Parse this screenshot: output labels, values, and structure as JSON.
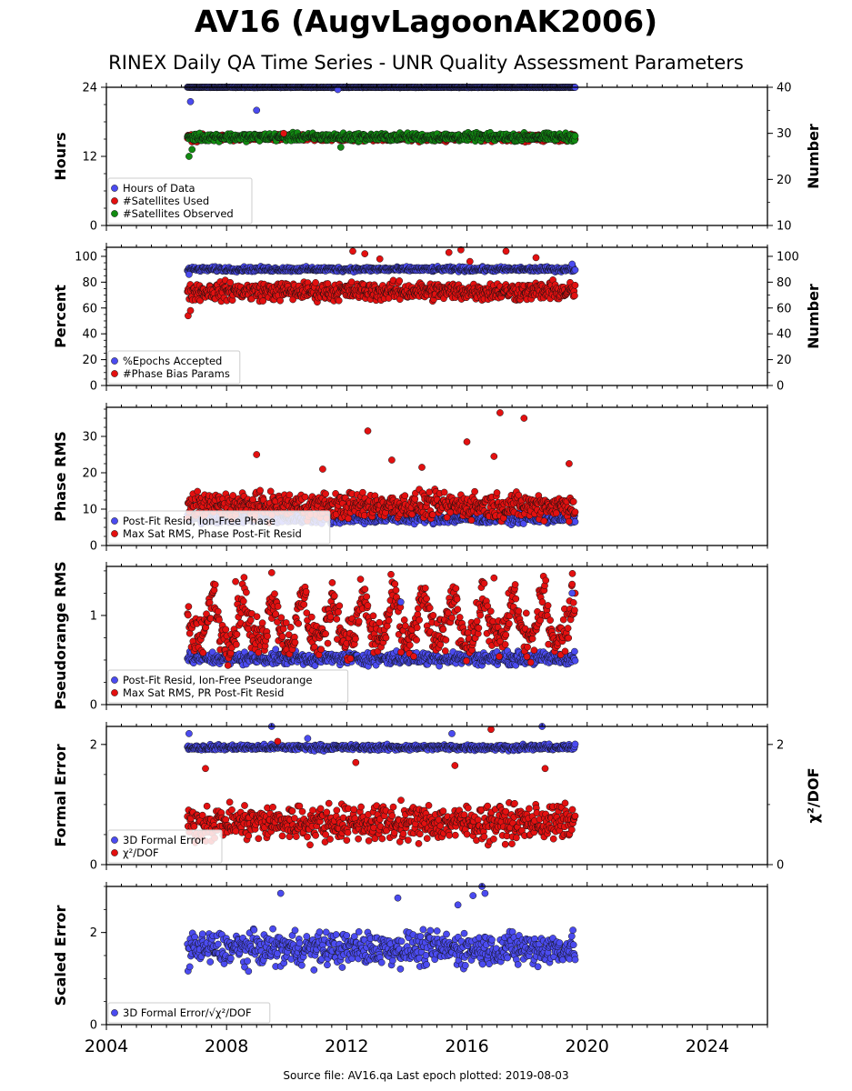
{
  "header": {
    "title": "AV16 (AugvLagoonAK2006)",
    "subtitle": "RINEX Daily QA Time Series - UNR Quality Assessment Parameters"
  },
  "footer": {
    "source": "Source file: AV16.qa Last epoch plotted: 2019-08-03"
  },
  "colors": {
    "blue": "#4b4bf0",
    "red": "#e31010",
    "green": "#118a11"
  },
  "chart_data": [
    {
      "type": "scatter",
      "ylabel": "Hours",
      "ylabel_right": "Number",
      "xlim": [
        2004,
        2026
      ],
      "ylim": [
        0,
        24
      ],
      "ylim_right": [
        10,
        40
      ],
      "yticks": [
        0,
        12,
        24
      ],
      "yticks_right": [
        10,
        20,
        30,
        40
      ],
      "legend": "bottom-left",
      "series": [
        {
          "name": "Hours of Data",
          "color": "#4b4bf0",
          "axis": "left",
          "x_range": [
            2006.7,
            2019.6
          ],
          "typical": 24.0,
          "spread": 0.05,
          "outliers": [
            [
              2006.8,
              21.5
            ],
            [
              2009.0,
              20.0
            ],
            [
              2011.7,
              23.6
            ]
          ]
        },
        {
          "name": "#Satellites Used",
          "color": "#e31010",
          "axis": "right",
          "x_range": [
            2006.7,
            2019.6
          ],
          "typical": 29.0,
          "spread": 0.6,
          "outliers": [
            [
              2009.9,
              30.0
            ]
          ]
        },
        {
          "name": "#Satellites Observed",
          "color": "#118a11",
          "axis": "right",
          "x_range": [
            2006.7,
            2019.6
          ],
          "typical": 29.2,
          "spread": 0.7,
          "outliers": [
            [
              2006.75,
              25.0
            ],
            [
              2006.85,
              26.5
            ],
            [
              2011.8,
              27.0
            ]
          ]
        }
      ]
    },
    {
      "type": "scatter",
      "ylabel": "Percent",
      "ylabel_right": "Number",
      "xlim": [
        2004,
        2026
      ],
      "ylim": [
        0,
        107
      ],
      "ylim_right": [
        0,
        107
      ],
      "yticks": [
        0,
        20,
        40,
        60,
        80,
        100
      ],
      "yticks_right": [
        0,
        20,
        40,
        60,
        80,
        100
      ],
      "legend": "bottom-left",
      "series": [
        {
          "name": "%Epochs Accepted",
          "color": "#4b4bf0",
          "axis": "left",
          "x_range": [
            2006.7,
            2019.6
          ],
          "typical": 90.0,
          "spread": 1.5,
          "outliers": [
            [
              2006.75,
              86.0
            ],
            [
              2019.5,
              94.0
            ]
          ]
        },
        {
          "name": "#Phase Bias Params",
          "color": "#e31010",
          "axis": "right",
          "x_range": [
            2006.7,
            2019.6
          ],
          "typical": 73.0,
          "spread": 6.0,
          "outliers": [
            [
              2006.72,
              54.0
            ],
            [
              2006.8,
              58.0
            ],
            [
              2012.2,
              104.0
            ],
            [
              2012.6,
              102.0
            ],
            [
              2013.1,
              98.0
            ],
            [
              2015.4,
              103.0
            ],
            [
              2015.8,
              105.0
            ],
            [
              2016.1,
              96.0
            ],
            [
              2017.3,
              104.0
            ],
            [
              2018.3,
              99.0
            ]
          ]
        }
      ]
    },
    {
      "type": "scatter",
      "ylabel": "Phase RMS",
      "xlim": [
        2004,
        2026
      ],
      "ylim": [
        0,
        38
      ],
      "yticks": [
        0,
        10,
        20,
        30
      ],
      "legend": "bottom-left",
      "series": [
        {
          "name": "Post-Fit Resid, Ion-Free Phase",
          "color": "#4b4bf0",
          "x_range": [
            2006.7,
            2019.6
          ],
          "typical": 7.5,
          "spread": 1.2,
          "outliers": []
        },
        {
          "name": "Max Sat RMS, Phase Post-Fit Resid",
          "color": "#e31010",
          "x_range": [
            2006.7,
            2019.6
          ],
          "typical": 11.0,
          "spread": 3.0,
          "outliers": [
            [
              2009.0,
              25.0
            ],
            [
              2012.7,
              31.5
            ],
            [
              2013.5,
              23.5
            ],
            [
              2016.0,
              28.5
            ],
            [
              2016.9,
              24.5
            ],
            [
              2017.1,
              36.5
            ],
            [
              2017.9,
              35.0
            ],
            [
              2019.4,
              22.5
            ],
            [
              2011.2,
              21.0
            ],
            [
              2014.5,
              21.5
            ]
          ]
        }
      ]
    },
    {
      "type": "scatter",
      "ylabel": "Pseudorange RMS",
      "xlim": [
        2004,
        2026
      ],
      "ylim": [
        0,
        1.55
      ],
      "yticks": [
        0,
        1
      ],
      "legend": "bottom-left",
      "series": [
        {
          "name": "Post-Fit Resid, Ion-Free Pseudorange",
          "color": "#4b4bf0",
          "x_range": [
            2006.7,
            2019.6
          ],
          "typical": 0.52,
          "spread": 0.06,
          "outliers": [
            [
              2013.8,
              1.15
            ],
            [
              2019.5,
              1.25
            ]
          ]
        },
        {
          "name": "Max Sat RMS, PR Post-Fit Resid",
          "color": "#e31010",
          "x_range": [
            2006.7,
            2019.6
          ],
          "typical": 0.8,
          "spread": 0.2,
          "seasonal": {
            "amplitude": 0.3,
            "phase": 0.55
          },
          "outliers": [
            [
              2009.5,
              1.48
            ],
            [
              2008.3,
              1.38
            ],
            [
              2016.9,
              1.42
            ],
            [
              2019.5,
              1.35
            ]
          ]
        }
      ]
    },
    {
      "type": "scatter",
      "ylabel": "Formal Error",
      "ylabel_right": "χ²/DOF",
      "xlim": [
        2004,
        2026
      ],
      "ylim": [
        0,
        2.3
      ],
      "ylim_right": [
        0,
        2.3
      ],
      "yticks": [
        0,
        2
      ],
      "yticks_right": [
        0,
        2
      ],
      "legend": "bottom-left",
      "series": [
        {
          "name": "3D Formal Error",
          "color": "#4b4bf0",
          "axis": "left",
          "x_range": [
            2006.7,
            2019.6
          ],
          "typical": 1.95,
          "spread": 0.04,
          "outliers": [
            [
              2006.75,
              2.18
            ],
            [
              2009.5,
              2.3
            ],
            [
              2015.5,
              2.18
            ],
            [
              2018.5,
              2.3
            ],
            [
              2010.7,
              2.1
            ]
          ]
        },
        {
          "name": "χ²/DOF",
          "color": "#e31010",
          "axis": "right",
          "x_range": [
            2006.7,
            2019.6
          ],
          "typical": 0.7,
          "spread": 0.25,
          "outliers": [
            [
              2009.7,
              2.05
            ],
            [
              2016.8,
              2.25
            ],
            [
              2007.3,
              1.6
            ],
            [
              2012.3,
              1.7
            ],
            [
              2015.6,
              1.65
            ],
            [
              2018.6,
              1.6
            ]
          ]
        }
      ]
    },
    {
      "type": "scatter",
      "ylabel": "Scaled Error",
      "xlim": [
        2004,
        2026
      ],
      "ylim": [
        0,
        3.0
      ],
      "yticks": [
        0,
        2
      ],
      "legend": "bottom-left",
      "series": [
        {
          "name": "3D Formal Error/√χ²/DOF",
          "color": "#4b4bf0",
          "x_range": [
            2006.7,
            2019.6
          ],
          "typical": 1.65,
          "spread": 0.3,
          "outliers": [
            [
              2009.8,
              2.85
            ],
            [
              2013.7,
              2.75
            ],
            [
              2015.7,
              2.6
            ],
            [
              2016.5,
              3.0
            ],
            [
              2016.6,
              2.85
            ],
            [
              2016.2,
              2.8
            ]
          ]
        }
      ]
    }
  ],
  "x_ticks": [
    2004,
    2008,
    2012,
    2016,
    2020,
    2024
  ]
}
